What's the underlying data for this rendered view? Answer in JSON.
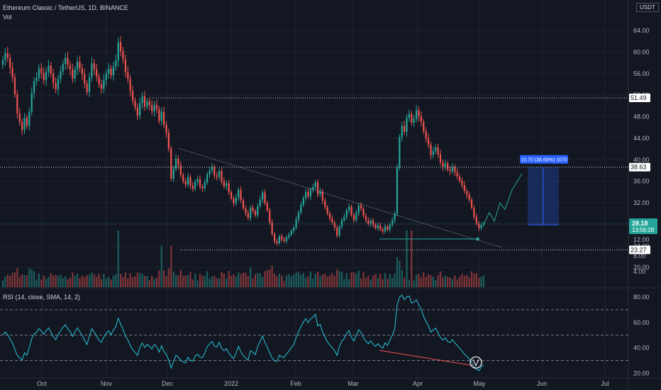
{
  "header": {
    "title": "Ethereum Classic / TetherUS, 1D, BINANCE",
    "vol_label": "Vol"
  },
  "currency_badge": "USDT",
  "rsi_label": "RSI (14, close, SMA, 14, 2)",
  "measure_label": "10.70 (38.69%) 1070",
  "chart_data": [
    {
      "type": "candlestick",
      "title": "Ethereum Classic / TetherUS, 1D, BINANCE",
      "x_ticks": [
        "Oct",
        "Nov",
        "Dec",
        "2022",
        "Feb",
        "Mar",
        "Apr",
        "May",
        "Jun",
        "Jul"
      ],
      "y_ticks": [
        20.0,
        24.0,
        28.0,
        32.0,
        36.0,
        40.0,
        44.0,
        48.0,
        52.0,
        56.0,
        60.0,
        64.0
      ],
      "ylim": [
        17,
        66.5
      ],
      "price_lines": [
        {
          "label": "51.49",
          "value": 51.49
        },
        {
          "label": "38.63",
          "value": 38.63
        },
        {
          "label": "23.27",
          "value": 23.27
        }
      ],
      "current_price": {
        "label": "28.18",
        "countdown": "13:56:28",
        "value": 28.18,
        "color": "#26a69a"
      },
      "colors": {
        "up": "#26a69a",
        "down": "#ef5350",
        "projection": "#26a69a",
        "measure": "#2962ff"
      },
      "closes": [
        58.5,
        59.8,
        58.9,
        57.1,
        55.3,
        52.1,
        48.6,
        47.0,
        45.5,
        47.8,
        46.3,
        48.9,
        52.4,
        54.6,
        55.2,
        57.0,
        56.1,
        54.8,
        56.3,
        57.5,
        56.0,
        54.2,
        53.1,
        55.0,
        56.4,
        57.8,
        58.9,
        57.6,
        56.8,
        55.1,
        56.7,
        58.2,
        57.0,
        55.9,
        54.1,
        52.6,
        55.3,
        57.9,
        56.8,
        55.4,
        54.0,
        53.2,
        54.8,
        56.0,
        56.9,
        55.7,
        57.3,
        58.4,
        61.8,
        60.2,
        58.6,
        56.3,
        55.0,
        52.8,
        51.0,
        49.7,
        48.2,
        50.5,
        51.8,
        49.9,
        50.8,
        50.1,
        49.0,
        50.2,
        49.4,
        47.2,
        48.9,
        46.5,
        45.0,
        42.1,
        36.5,
        38.3,
        40.2,
        39.0,
        37.2,
        36.0,
        35.4,
        36.8,
        35.2,
        34.6,
        35.9,
        36.4,
        35.0,
        34.7,
        35.8,
        37.3,
        38.0,
        38.6,
        37.1,
        36.8,
        37.9,
        36.0,
        35.1,
        35.6,
        34.0,
        32.8,
        31.9,
        33.0,
        34.4,
        32.5,
        31.0,
        30.1,
        29.2,
        31.1,
        30.5,
        29.7,
        31.4,
        32.6,
        33.9,
        32.0,
        30.6,
        28.4,
        26.2,
        24.9,
        24.5,
        25.8,
        25.2,
        24.9,
        25.6,
        26.1,
        26.8,
        27.4,
        28.9,
        30.2,
        31.6,
        32.9,
        34.0,
        33.2,
        34.4,
        34.9,
        35.8,
        33.6,
        34.1,
        32.4,
        31.2,
        30.0,
        29.1,
        28.3,
        27.4,
        25.9,
        27.6,
        28.8,
        29.4,
        30.6,
        31.3,
        29.7,
        28.8,
        30.1,
        31.5,
        30.9,
        29.6,
        28.8,
        28.1,
        28.7,
        27.9,
        27.3,
        27.8,
        27.1,
        26.7,
        27.6,
        27.0,
        27.9,
        28.8,
        30.0,
        38.5,
        44.2,
        46.3,
        45.2,
        47.8,
        48.5,
        46.9,
        47.6,
        49.2,
        48.1,
        47.0,
        45.3,
        44.0,
        42.8,
        40.9,
        41.6,
        42.3,
        41.0,
        39.5,
        38.7,
        39.3,
        38.2,
        37.9,
        38.6,
        37.7,
        36.9,
        36.1,
        35.3,
        34.2,
        33.5,
        32.6,
        31.1,
        29.4,
        28.2,
        27.3,
        27.9,
        28.18
      ],
      "volume": {
        "y_ticks": [
          4.0,
          8.0,
          12.0,
          16.0
        ],
        "unit": "M"
      },
      "rsi": {
        "name": "RSI (14, close, SMA, 14, 2)",
        "y_ticks": [
          20.0,
          40.0,
          60.0,
          80.0
        ],
        "bands": [
          70,
          50,
          30
        ],
        "ylim": [
          18,
          85
        ],
        "line_color": "#26c6da",
        "divergence_color": "#ef5350"
      }
    }
  ]
}
